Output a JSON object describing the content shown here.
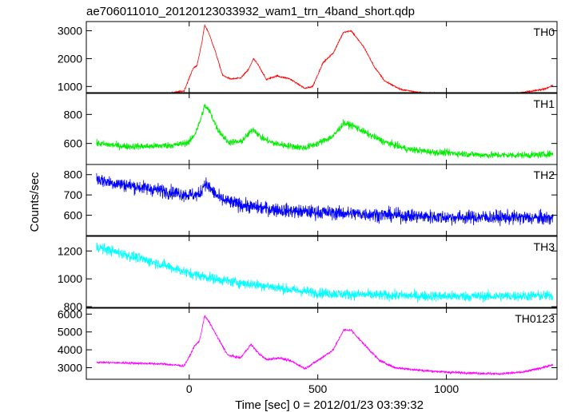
{
  "title": "ae706011010_20120123033932_wam1_trn_4band_short.qdp",
  "xlabel": "Time [sec] 0 = 2012/01/23 03:39:32",
  "ylabel": "Counts/sec",
  "chart_data": {
    "type": "line",
    "title": "ae706011010_20120123033932_wam1_trn_4band_short.qdp",
    "xlabel": "Time [sec] 0 = 2012/01/23 03:39:32",
    "ylabel": "Counts/sec",
    "xlim": [
      -400,
      1430
    ],
    "x_ticks": [
      0,
      500,
      1000
    ],
    "grid": false,
    "panels": [
      {
        "name": "TH0",
        "color": "#ff0000",
        "ylim": [
          780,
          3330
        ],
        "y_ticks": [
          1000,
          2000,
          3000
        ],
        "noise": 25,
        "points": [
          [
            -360,
            720
          ],
          [
            -200,
            700
          ],
          [
            -100,
            720
          ],
          [
            -20,
            840
          ],
          [
            0,
            1300
          ],
          [
            15,
            1650
          ],
          [
            30,
            1750
          ],
          [
            50,
            2600
          ],
          [
            60,
            3200
          ],
          [
            75,
            2950
          ],
          [
            100,
            2300
          ],
          [
            130,
            1400
          ],
          [
            160,
            1270
          ],
          [
            200,
            1300
          ],
          [
            230,
            1600
          ],
          [
            250,
            2000
          ],
          [
            270,
            1750
          ],
          [
            300,
            1250
          ],
          [
            340,
            1380
          ],
          [
            390,
            1280
          ],
          [
            450,
            930
          ],
          [
            480,
            1000
          ],
          [
            520,
            1850
          ],
          [
            560,
            2200
          ],
          [
            600,
            2950
          ],
          [
            630,
            3000
          ],
          [
            680,
            2400
          ],
          [
            720,
            1700
          ],
          [
            760,
            1200
          ],
          [
            820,
            900
          ],
          [
            900,
            780
          ],
          [
            1000,
            720
          ],
          [
            1100,
            690
          ],
          [
            1200,
            680
          ],
          [
            1300,
            790
          ],
          [
            1380,
            900
          ],
          [
            1415,
            1050
          ]
        ]
      },
      {
        "name": "TH1",
        "color": "#00ee00",
        "ylim": [
          455,
          945
        ],
        "y_ticks": [
          600,
          800
        ],
        "noise": 22,
        "points": [
          [
            -360,
            600
          ],
          [
            -250,
            580
          ],
          [
            -150,
            580
          ],
          [
            -50,
            590
          ],
          [
            0,
            610
          ],
          [
            20,
            660
          ],
          [
            40,
            740
          ],
          [
            60,
            860
          ],
          [
            80,
            820
          ],
          [
            110,
            700
          ],
          [
            150,
            610
          ],
          [
            200,
            610
          ],
          [
            250,
            700
          ],
          [
            280,
            640
          ],
          [
            330,
            600
          ],
          [
            400,
            580
          ],
          [
            450,
            570
          ],
          [
            500,
            600
          ],
          [
            560,
            650
          ],
          [
            600,
            740
          ],
          [
            640,
            720
          ],
          [
            700,
            660
          ],
          [
            760,
            610
          ],
          [
            850,
            560
          ],
          [
            950,
            540
          ],
          [
            1050,
            530
          ],
          [
            1150,
            520
          ],
          [
            1250,
            520
          ],
          [
            1350,
            520
          ],
          [
            1415,
            530
          ]
        ]
      },
      {
        "name": "TH2",
        "color": "#0000ff",
        "ylim": [
          500,
          850
        ],
        "y_ticks": [
          600,
          700,
          800
        ],
        "noise": 32,
        "points": [
          [
            -360,
            780
          ],
          [
            -300,
            760
          ],
          [
            -200,
            740
          ],
          [
            -100,
            720
          ],
          [
            0,
            700
          ],
          [
            40,
            700
          ],
          [
            60,
            760
          ],
          [
            90,
            720
          ],
          [
            120,
            680
          ],
          [
            170,
            660
          ],
          [
            250,
            640
          ],
          [
            400,
            620
          ],
          [
            600,
            610
          ],
          [
            800,
            600
          ],
          [
            1000,
            590
          ],
          [
            1200,
            590
          ],
          [
            1415,
            585
          ]
        ]
      },
      {
        "name": "TH3",
        "color": "#00ffff",
        "ylim": [
          795,
          1305
        ],
        "y_ticks": [
          800,
          1000,
          1200
        ],
        "noise": 35,
        "points": [
          [
            -360,
            1230
          ],
          [
            -300,
            1200
          ],
          [
            -200,
            1150
          ],
          [
            -100,
            1100
          ],
          [
            0,
            1040
          ],
          [
            100,
            1000
          ],
          [
            200,
            970
          ],
          [
            300,
            950
          ],
          [
            400,
            920
          ],
          [
            500,
            900
          ],
          [
            600,
            890
          ],
          [
            800,
            880
          ],
          [
            1000,
            875
          ],
          [
            1200,
            875
          ],
          [
            1415,
            880
          ]
        ]
      },
      {
        "name": "TH0123",
        "color": "#ff00ff",
        "ylim": [
          2350,
          6330
        ],
        "y_ticks": [
          3000,
          4000,
          5000,
          6000
        ],
        "noise": 60,
        "points": [
          [
            -360,
            3300
          ],
          [
            -200,
            3250
          ],
          [
            -100,
            3200
          ],
          [
            -20,
            3100
          ],
          [
            0,
            3600
          ],
          [
            20,
            4200
          ],
          [
            40,
            4500
          ],
          [
            60,
            5900
          ],
          [
            80,
            5500
          ],
          [
            110,
            4700
          ],
          [
            150,
            3700
          ],
          [
            200,
            3550
          ],
          [
            240,
            4300
          ],
          [
            270,
            3800
          ],
          [
            300,
            3450
          ],
          [
            350,
            3550
          ],
          [
            400,
            3350
          ],
          [
            450,
            2950
          ],
          [
            500,
            3400
          ],
          [
            560,
            4000
          ],
          [
            600,
            5100
          ],
          [
            630,
            5100
          ],
          [
            680,
            4300
          ],
          [
            740,
            3400
          ],
          [
            800,
            3000
          ],
          [
            900,
            2850
          ],
          [
            1000,
            2750
          ],
          [
            1100,
            2700
          ],
          [
            1200,
            2650
          ],
          [
            1300,
            2750
          ],
          [
            1415,
            3150
          ]
        ]
      }
    ]
  }
}
